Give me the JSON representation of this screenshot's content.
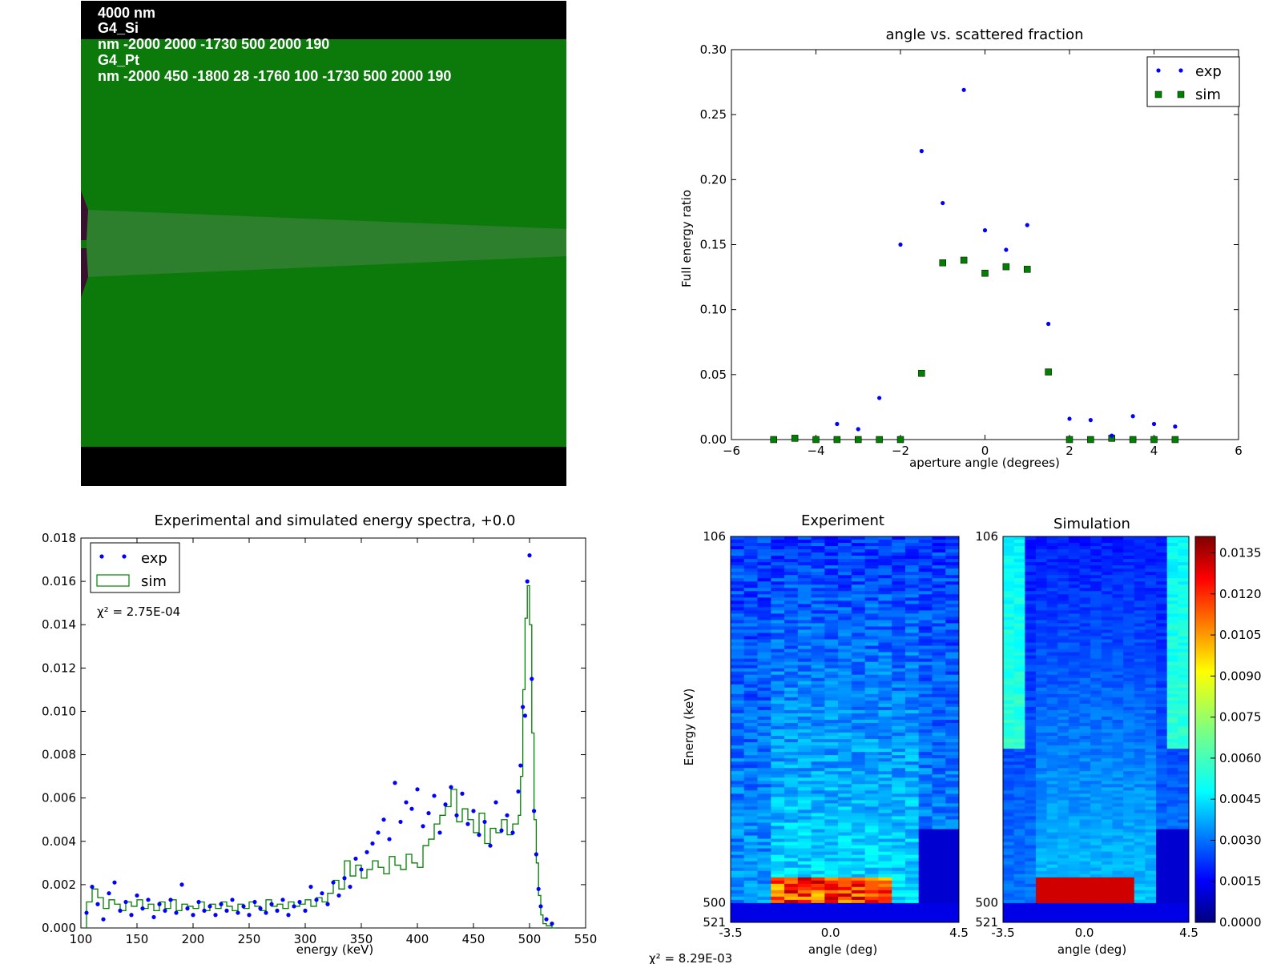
{
  "simulation_view": {
    "lines": [
      "4000 nm",
      "G4_Si",
      "nm -2000 2000 -1730 500 2000 190",
      "G4_Pt",
      "nm -2000 450 -1800 28 -1760 100 -1730 500 2000 190"
    ],
    "colors": {
      "background": "#000000",
      "silicon": "#0b7a0b",
      "beam": "#2d7e2d",
      "source": "#3a1030"
    }
  },
  "chart_data": [
    {
      "id": "fraction",
      "type": "scatter",
      "title": "angle vs. scattered fraction",
      "xlabel": "aperture angle (degrees)",
      "ylabel": "Full energy ratio",
      "xlim": [
        -6,
        6
      ],
      "ylim": [
        0,
        0.3
      ],
      "xticks": [
        "−6",
        "−4",
        "−2",
        "0",
        "2",
        "4",
        "6"
      ],
      "yticks": [
        "0.00",
        "0.05",
        "0.10",
        "0.15",
        "0.20",
        "0.25",
        "0.30"
      ],
      "legend_position": "top-right",
      "series": [
        {
          "name": "exp",
          "marker": "dot",
          "color": "#0000ff",
          "x": [
            -3.5,
            -3.0,
            -2.5,
            -2.0,
            -1.5,
            -1.0,
            -0.5,
            0.0,
            0.5,
            1.0,
            1.5,
            2.0,
            2.5,
            3.0,
            3.5,
            4.0,
            4.5
          ],
          "y": [
            0.012,
            0.008,
            0.032,
            0.15,
            0.222,
            0.182,
            0.269,
            0.161,
            0.146,
            0.165,
            0.089,
            0.016,
            0.015,
            0.003,
            0.018,
            0.012,
            0.01
          ]
        },
        {
          "name": "sim",
          "marker": "square",
          "color": "#007f00",
          "x": [
            -5.0,
            -4.5,
            -4.0,
            -3.5,
            -3.0,
            -2.5,
            -2.0,
            -1.5,
            -1.0,
            -0.5,
            0.0,
            0.5,
            1.0,
            1.5,
            2.0,
            2.5,
            3.0,
            3.5,
            4.0,
            4.5
          ],
          "y": [
            0.0,
            0.001,
            0.0,
            0.0,
            0.0,
            0.0,
            0.0,
            0.051,
            0.136,
            0.138,
            0.128,
            0.133,
            0.131,
            0.052,
            0.0,
            0.0,
            0.001,
            0.0,
            0.0,
            0.0
          ]
        }
      ]
    },
    {
      "id": "spectra",
      "type": "line",
      "title": "Experimental and simulated energy spectra, +0.0",
      "xlabel": "energy (keV)",
      "ylabel": "",
      "xlim": [
        100,
        550
      ],
      "ylim": [
        0,
        0.018
      ],
      "xticks": [
        "100",
        "150",
        "200",
        "250",
        "300",
        "350",
        "400",
        "450",
        "500",
        "550"
      ],
      "yticks": [
        "0.000",
        "0.002",
        "0.004",
        "0.006",
        "0.008",
        "0.010",
        "0.012",
        "0.014",
        "0.016",
        "0.018"
      ],
      "legend_position": "top-left",
      "annotation": "χ² = 2.75E-04",
      "series": [
        {
          "name": "exp",
          "marker": "dot",
          "color": "#0000ff",
          "x": [
            105,
            110,
            115,
            120,
            125,
            130,
            135,
            140,
            145,
            150,
            155,
            160,
            165,
            170,
            175,
            180,
            185,
            190,
            195,
            200,
            205,
            210,
            215,
            220,
            225,
            230,
            235,
            240,
            245,
            250,
            255,
            260,
            265,
            270,
            275,
            280,
            285,
            290,
            295,
            300,
            305,
            310,
            315,
            320,
            325,
            330,
            335,
            340,
            345,
            350,
            355,
            360,
            365,
            370,
            375,
            380,
            385,
            390,
            395,
            400,
            405,
            410,
            415,
            420,
            425,
            430,
            435,
            440,
            445,
            450,
            455,
            460,
            465,
            470,
            475,
            480,
            485,
            490,
            492,
            494,
            496,
            498,
            500,
            502,
            504,
            506,
            508,
            510,
            515,
            520
          ],
          "y": [
            0.0007,
            0.0019,
            0.0011,
            0.0004,
            0.0016,
            0.0021,
            0.0008,
            0.0012,
            0.0006,
            0.0015,
            0.0009,
            0.0013,
            0.0005,
            0.0011,
            0.0008,
            0.0013,
            0.0007,
            0.002,
            0.0009,
            0.0006,
            0.0012,
            0.0008,
            0.001,
            0.0006,
            0.0011,
            0.0008,
            0.0013,
            0.0007,
            0.001,
            0.0006,
            0.0012,
            0.0009,
            0.0007,
            0.0011,
            0.0008,
            0.0013,
            0.0006,
            0.001,
            0.0012,
            0.0008,
            0.0019,
            0.0013,
            0.0016,
            0.0011,
            0.0021,
            0.0015,
            0.0023,
            0.0019,
            0.0032,
            0.0027,
            0.0035,
            0.0039,
            0.0044,
            0.005,
            0.0041,
            0.0067,
            0.0049,
            0.0058,
            0.0055,
            0.0064,
            0.0047,
            0.0053,
            0.0061,
            0.0044,
            0.0057,
            0.0065,
            0.0052,
            0.0062,
            0.0048,
            0.0054,
            0.0043,
            0.0049,
            0.0038,
            0.0058,
            0.0045,
            0.0052,
            0.0044,
            0.0063,
            0.0075,
            0.0102,
            0.0098,
            0.016,
            0.0172,
            0.0115,
            0.0054,
            0.0034,
            0.0018,
            0.001,
            0.0004,
            0.0002
          ]
        },
        {
          "name": "sim",
          "marker": "step",
          "color": "#007f00",
          "x": [
            105,
            110,
            115,
            120,
            125,
            130,
            135,
            140,
            145,
            150,
            155,
            160,
            165,
            170,
            175,
            180,
            185,
            190,
            195,
            200,
            205,
            210,
            215,
            220,
            225,
            230,
            235,
            240,
            245,
            250,
            255,
            260,
            265,
            270,
            275,
            280,
            285,
            290,
            295,
            300,
            305,
            310,
            315,
            320,
            325,
            330,
            335,
            340,
            345,
            350,
            355,
            360,
            365,
            370,
            375,
            380,
            385,
            390,
            395,
            400,
            405,
            410,
            415,
            420,
            425,
            430,
            435,
            440,
            445,
            450,
            455,
            460,
            465,
            470,
            475,
            480,
            485,
            490,
            492,
            494,
            496,
            498,
            500,
            502,
            504,
            506,
            508,
            510,
            512,
            515,
            520
          ],
          "y": [
            0.0012,
            0.0018,
            0.0014,
            0.0009,
            0.0013,
            0.0011,
            0.0008,
            0.0012,
            0.001,
            0.0013,
            0.0009,
            0.0011,
            0.0008,
            0.0012,
            0.0009,
            0.0013,
            0.0008,
            0.0011,
            0.001,
            0.0009,
            0.0012,
            0.0008,
            0.0011,
            0.0009,
            0.0012,
            0.001,
            0.0008,
            0.0011,
            0.0009,
            0.0012,
            0.001,
            0.0008,
            0.0013,
            0.001,
            0.0011,
            0.0009,
            0.0012,
            0.001,
            0.0011,
            0.0013,
            0.001,
            0.0014,
            0.0012,
            0.0016,
            0.0022,
            0.0018,
            0.0031,
            0.0024,
            0.0029,
            0.0023,
            0.0027,
            0.0031,
            0.0028,
            0.0025,
            0.0033,
            0.0029,
            0.0027,
            0.0034,
            0.003,
            0.0028,
            0.0038,
            0.0041,
            0.0048,
            0.0052,
            0.0056,
            0.0064,
            0.0049,
            0.0055,
            0.005,
            0.0044,
            0.0053,
            0.0039,
            0.0046,
            0.0044,
            0.005,
            0.0043,
            0.0048,
            0.0052,
            0.007,
            0.011,
            0.0143,
            0.0158,
            0.014,
            0.009,
            0.005,
            0.003,
            0.0015,
            0.0006,
            0.0002,
            0.0001,
            0.0
          ]
        }
      ]
    },
    {
      "id": "experiment-map",
      "type": "heatmap",
      "title": "Experiment",
      "xlabel": "angle (deg)",
      "ylabel": "Energy (keV)",
      "xticks": [
        "-3.5",
        "0.0",
        "4.5"
      ],
      "yticks": [
        "106",
        "500",
        "521"
      ],
      "xlim": [
        -3.5,
        4.5
      ],
      "ylim": [
        106,
        521
      ],
      "colormap": "jet"
    },
    {
      "id": "simulation-map",
      "type": "heatmap",
      "title": "Simulation",
      "xlabel": "angle (deg)",
      "ylabel": "",
      "xticks": [
        "-3.5",
        "0.0",
        "4.5"
      ],
      "yticks": [
        "106",
        "500",
        "521"
      ],
      "xlim": [
        -3.5,
        4.5
      ],
      "ylim": [
        106,
        521
      ],
      "colormap": "jet"
    },
    {
      "id": "colorbar",
      "type": "colorbar",
      "ticks": [
        "0.0000",
        "0.0015",
        "0.0030",
        "0.0045",
        "0.0060",
        "0.0075",
        "0.0090",
        "0.0105",
        "0.0120",
        "0.0135"
      ],
      "range": [
        0,
        0.0141
      ]
    }
  ],
  "footer": {
    "chi2": "χ² = 8.29E-03"
  }
}
